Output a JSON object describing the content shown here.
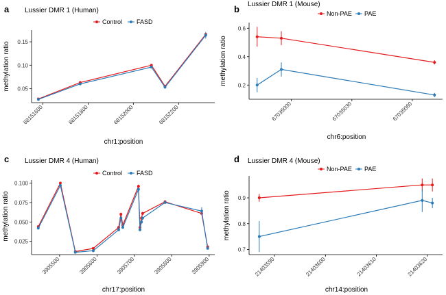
{
  "colors": {
    "red": "#e41a1c",
    "blue": "#2a7ab8"
  },
  "chart_data": [
    {
      "id": "a",
      "type": "line",
      "panel_letter": "a",
      "title": "Lussier DMR 1 (Human)",
      "xlabel": "chr1:position",
      "ylabel": "methylation ratio",
      "xlim": [
        68151550,
        68152360
      ],
      "ylim": [
        0.02,
        0.175
      ],
      "xticks": [
        68151600,
        68151800,
        68152000,
        68152200
      ],
      "yticks": [
        0.05,
        0.1,
        0.15
      ],
      "ytick_labels": [
        "0.05",
        "0.10",
        "0.15"
      ],
      "legend": [
        "Control",
        "FASD"
      ],
      "series": [
        {
          "name": "Control",
          "color": "#e41a1c",
          "x": [
            68151580,
            68151765,
            68152080,
            68152140,
            68152320
          ],
          "y": [
            0.028,
            0.063,
            0.1,
            0.055,
            0.166
          ],
          "err": [
            0.001,
            0.003,
            0.002,
            0.002,
            0.003
          ]
        },
        {
          "name": "FASD",
          "color": "#2a7ab8",
          "x": [
            68151580,
            68151765,
            68152080,
            68152140,
            68152320
          ],
          "y": [
            0.027,
            0.06,
            0.096,
            0.053,
            0.164
          ],
          "err": [
            0.001,
            0.002,
            0.002,
            0.002,
            0.007
          ]
        }
      ]
    },
    {
      "id": "b",
      "type": "line",
      "panel_letter": "b",
      "title": "Lussier DMR 1 (Mouse)",
      "xlabel": "chr6:position",
      "ylabel": "methylation ratio",
      "xlim": [
        67034979,
        67035075
      ],
      "ylim": [
        0.1,
        0.64
      ],
      "xticks": [
        67035000,
        67035030,
        67035060
      ],
      "yticks": [
        0.2,
        0.4,
        0.6
      ],
      "ytick_labels": [
        "0.2",
        "0.4",
        "0.6"
      ],
      "legend": [
        "Non-PAE",
        "PAE"
      ],
      "series": [
        {
          "name": "Non-PAE",
          "color": "#e41a1c",
          "x": [
            67034983,
            67034995,
            67035071
          ],
          "y": [
            0.54,
            0.53,
            0.36
          ],
          "err": [
            0.07,
            0.05,
            0.015
          ]
        },
        {
          "name": "PAE",
          "color": "#2a7ab8",
          "x": [
            67034983,
            67034995,
            67035071
          ],
          "y": [
            0.2,
            0.31,
            0.13
          ],
          "err": [
            0.05,
            0.05,
            0.015
          ]
        }
      ]
    },
    {
      "id": "c",
      "type": "line",
      "panel_letter": "c",
      "title": "Lussier DMR 4 (Human)",
      "xlabel": "chr17:position",
      "ylabel": "methylation ratio",
      "xlim": [
        3905425,
        3905915
      ],
      "ylim": [
        0.008,
        0.104
      ],
      "xticks": [
        3905500,
        3905600,
        3905700,
        3905800,
        3905900
      ],
      "yticks": [
        0.025,
        0.05,
        0.075,
        0.1
      ],
      "ytick_labels": [
        "0.025",
        "0.050",
        "0.075",
        "0.100"
      ],
      "legend": [
        "Control",
        "FASD"
      ],
      "series": [
        {
          "name": "Control",
          "color": "#e41a1c",
          "x": [
            3905443,
            3905502,
            3905542,
            3905590,
            3905658,
            3905664,
            3905669,
            3905711,
            3905715,
            3905719,
            3905722,
            3905782,
            3905880,
            3905896
          ],
          "y": [
            0.044,
            0.1,
            0.012,
            0.016,
            0.043,
            0.06,
            0.046,
            0.096,
            0.043,
            0.055,
            0.061,
            0.076,
            0.061,
            0.018
          ],
          "err": [
            0.001,
            0.001,
            0.001,
            0.001,
            0.002,
            0.002,
            0.001,
            0.002,
            0.002,
            0.002,
            0.002,
            0.002,
            0.002,
            0.001
          ]
        },
        {
          "name": "FASD",
          "color": "#2a7ab8",
          "x": [
            3905443,
            3905502,
            3905542,
            3905590,
            3905658,
            3905664,
            3905669,
            3905711,
            3905715,
            3905719,
            3905722,
            3905782,
            3905880,
            3905896
          ],
          "y": [
            0.042,
            0.097,
            0.011,
            0.013,
            0.04,
            0.055,
            0.043,
            0.092,
            0.04,
            0.05,
            0.055,
            0.075,
            0.064,
            0.016
          ],
          "err": [
            0.001,
            0.001,
            0.001,
            0.001,
            0.002,
            0.002,
            0.001,
            0.002,
            0.002,
            0.002,
            0.002,
            0.002,
            0.005,
            0.001
          ]
        }
      ]
    },
    {
      "id": "d",
      "type": "line",
      "panel_letter": "d",
      "title": "Lussier DMR 4 (Mouse)",
      "xlabel": "chr14:position",
      "ylabel": "methylation ratio",
      "xlim": [
        21403585,
        21403623
      ],
      "ylim": [
        0.68,
        0.985
      ],
      "xticks": [
        21403590,
        21403600,
        21403610,
        21403620
      ],
      "yticks": [
        0.7,
        0.8,
        0.9
      ],
      "ytick_labels": [
        "0.7",
        "0.8",
        "0.9"
      ],
      "legend": [
        "Non-PAE",
        "PAE"
      ],
      "series": [
        {
          "name": "Non-PAE",
          "color": "#e41a1c",
          "x": [
            21403587,
            21403619,
            21403621
          ],
          "y": [
            0.9,
            0.95,
            0.95
          ],
          "err": [
            0.015,
            0.025,
            0.025
          ]
        },
        {
          "name": "PAE",
          "color": "#2a7ab8",
          "x": [
            21403587,
            21403619,
            21403621
          ],
          "y": [
            0.75,
            0.89,
            0.88
          ],
          "err": [
            0.06,
            0.045,
            0.02
          ]
        }
      ]
    }
  ]
}
